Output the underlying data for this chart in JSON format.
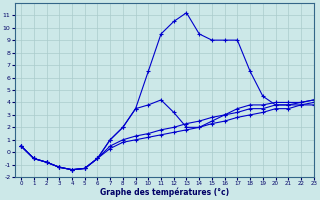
{
  "xlabel": "Graphe des températures (°c)",
  "background_color": "#cce8e8",
  "grid_color": "#aacccc",
  "line_color": "#0000cc",
  "hours": [
    0,
    1,
    2,
    3,
    4,
    5,
    6,
    7,
    8,
    9,
    10,
    11,
    12,
    13,
    14,
    15,
    16,
    17,
    18,
    19,
    20,
    21,
    22,
    23
  ],
  "temp_main": [
    0.5,
    -0.5,
    -0.8,
    -1.2,
    -1.4,
    -1.3,
    -0.5,
    1.0,
    2.0,
    3.5,
    6.5,
    9.5,
    10.5,
    11.2,
    9.5,
    9.0,
    9.0,
    9.0,
    6.5,
    4.5,
    3.8,
    3.8,
    4.0,
    4.2
  ],
  "temp_line1": [
    0.5,
    -0.5,
    -0.8,
    -1.2,
    -1.4,
    -1.3,
    -0.5,
    1.0,
    2.0,
    3.5,
    3.8,
    4.2,
    3.2,
    2.0,
    2.0,
    2.5,
    3.0,
    3.5,
    3.8,
    3.8,
    4.0,
    4.0,
    4.0,
    4.2
  ],
  "temp_line2": [
    0.5,
    -0.5,
    -0.8,
    -1.2,
    -1.4,
    -1.3,
    -0.5,
    0.5,
    1.0,
    1.3,
    1.5,
    1.8,
    2.0,
    2.3,
    2.5,
    2.8,
    3.0,
    3.2,
    3.5,
    3.5,
    3.8,
    3.8,
    3.8,
    4.0
  ],
  "temp_line3": [
    0.5,
    -0.5,
    -0.8,
    -1.2,
    -1.4,
    -1.3,
    -0.5,
    0.3,
    0.8,
    1.0,
    1.2,
    1.4,
    1.6,
    1.8,
    2.0,
    2.3,
    2.5,
    2.8,
    3.0,
    3.2,
    3.5,
    3.5,
    3.8,
    3.8
  ],
  "ylim": [
    -2,
    12
  ],
  "xlim": [
    -0.5,
    23
  ],
  "yticks": [
    -2,
    -1,
    0,
    1,
    2,
    3,
    4,
    5,
    6,
    7,
    8,
    9,
    10,
    11
  ],
  "xticks": [
    0,
    1,
    2,
    3,
    4,
    5,
    6,
    7,
    8,
    9,
    10,
    11,
    12,
    13,
    14,
    15,
    16,
    17,
    18,
    19,
    20,
    21,
    22,
    23
  ]
}
